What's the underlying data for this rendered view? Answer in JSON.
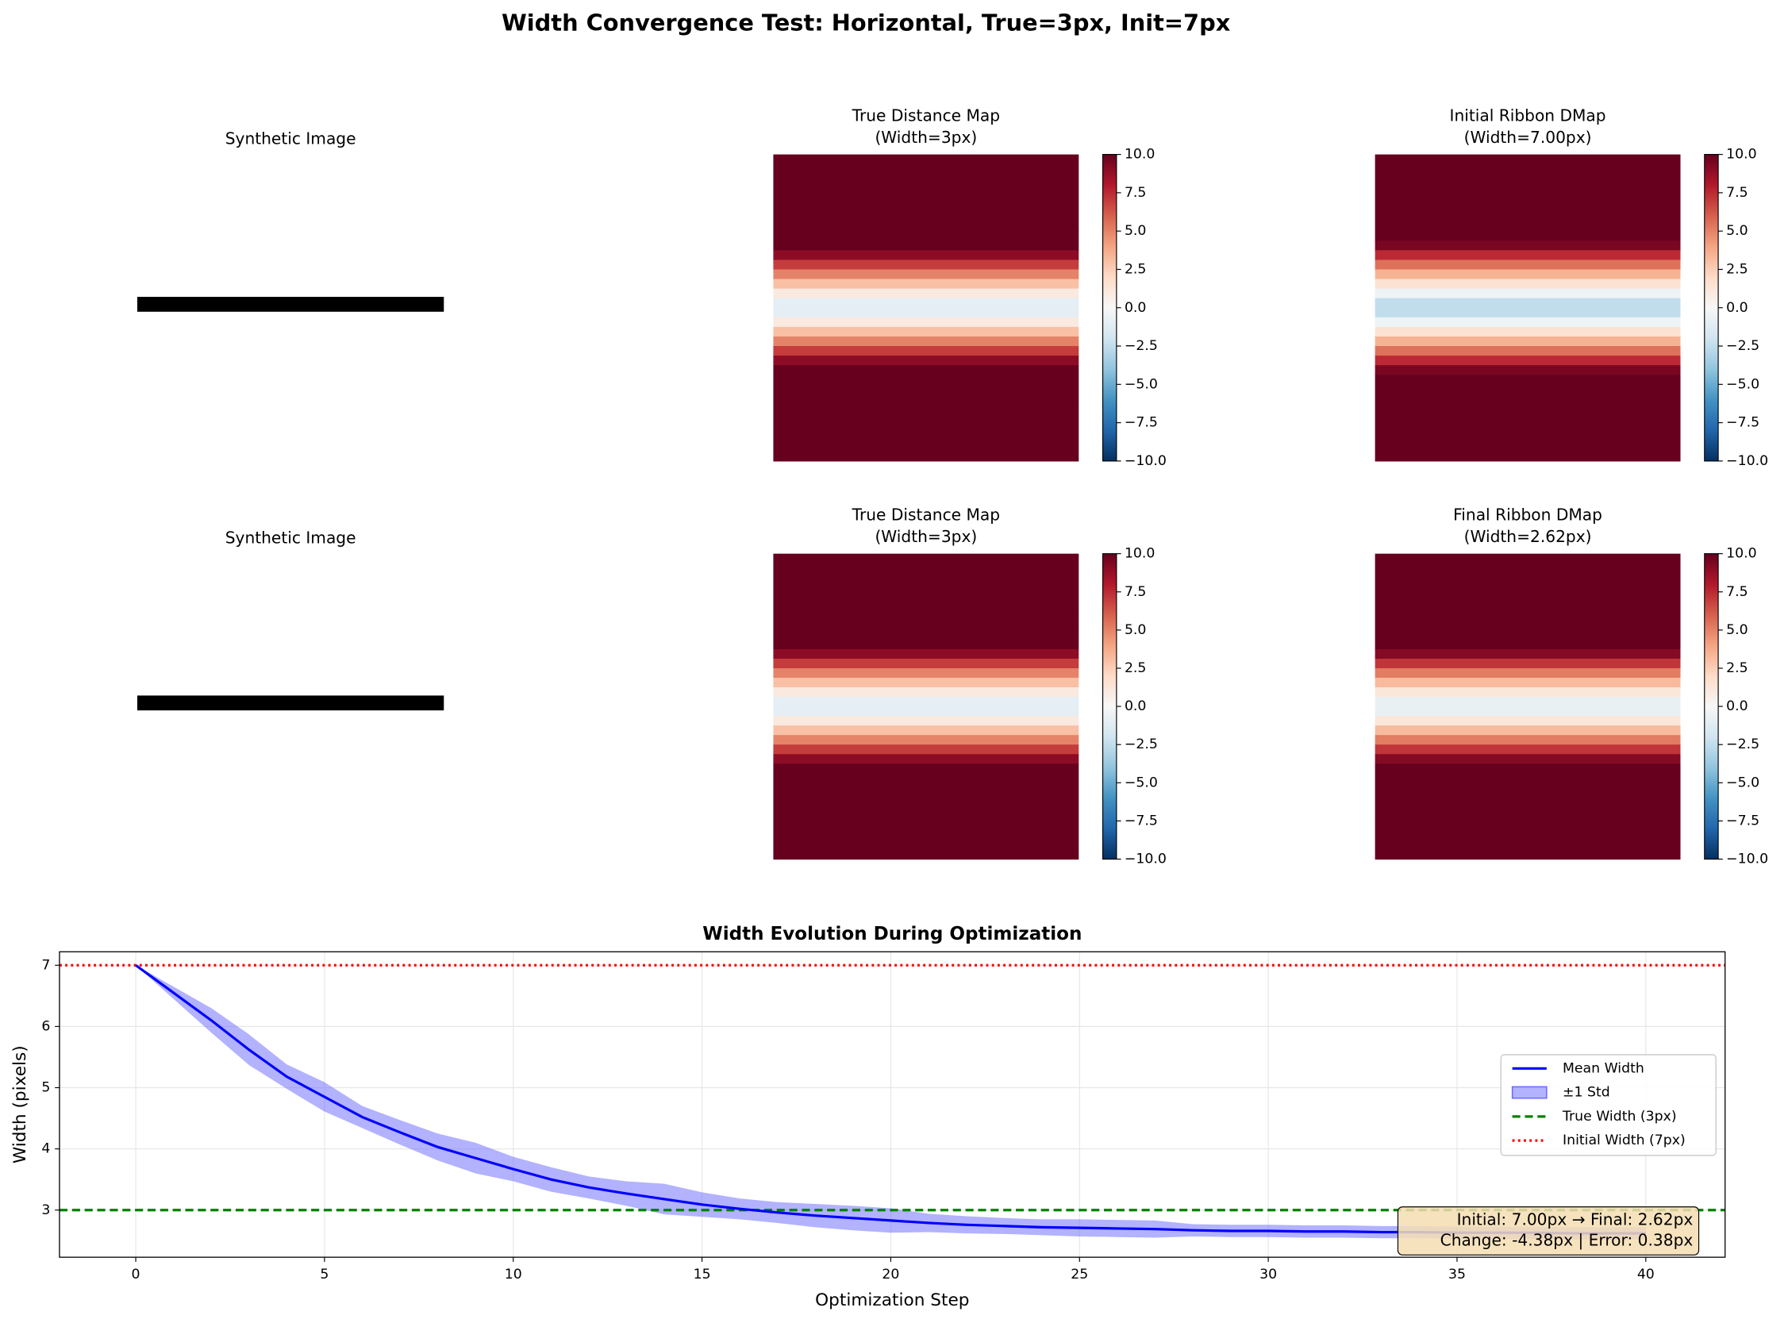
{
  "title": "Width Convergence Test: Horizontal, True=3px, Init=7px",
  "chart_data": [
    {
      "type": "image",
      "title": "Synthetic Image"
    },
    {
      "type": "heatmap",
      "title": "True Distance Map",
      "subtitle": "(Width=3px)",
      "colormap": "RdBu_r",
      "clim": [
        -10,
        10
      ],
      "values": [
        10,
        10,
        10,
        10,
        10,
        10,
        10,
        10,
        10,
        10,
        9,
        7,
        5,
        3,
        1,
        -1,
        -1,
        1,
        3,
        5,
        7,
        9,
        10,
        10,
        10,
        10,
        10,
        10,
        10,
        10,
        10,
        10
      ],
      "cticks": [
        {
          "value": 10,
          "label": "10.0"
        },
        {
          "value": 7.5,
          "label": "7.5"
        },
        {
          "value": 5,
          "label": "5.0"
        },
        {
          "value": 2.5,
          "label": "2.5"
        },
        {
          "value": 0,
          "label": "0.0"
        },
        {
          "value": -2.5,
          "label": "−2.5"
        },
        {
          "value": -5,
          "label": "−5.0"
        },
        {
          "value": -7.5,
          "label": "−7.5"
        },
        {
          "value": -10,
          "label": "−10.0"
        }
      ]
    },
    {
      "type": "heatmap",
      "title": "Initial Ribbon DMap",
      "subtitle": "(Width=7.00px)",
      "colormap": "RdBu_r",
      "clim": [
        -10,
        10
      ],
      "values": [
        10,
        10,
        10,
        10,
        10,
        10,
        10,
        10,
        10,
        9.5,
        7.5,
        5.5,
        3.5,
        1.5,
        -0.5,
        -2.5,
        -2.5,
        -0.5,
        1.5,
        3.5,
        5.5,
        7.5,
        9.5,
        10,
        10,
        10,
        10,
        10,
        10,
        10,
        10,
        10
      ],
      "cticks": [
        {
          "value": 10,
          "label": "10.0"
        },
        {
          "value": 7.5,
          "label": "7.5"
        },
        {
          "value": 5,
          "label": "5.0"
        },
        {
          "value": 2.5,
          "label": "2.5"
        },
        {
          "value": 0,
          "label": "0.0"
        },
        {
          "value": -2.5,
          "label": "−2.5"
        },
        {
          "value": -5,
          "label": "−5.0"
        },
        {
          "value": -7.5,
          "label": "−7.5"
        },
        {
          "value": -10,
          "label": "−10.0"
        }
      ]
    },
    {
      "type": "image",
      "title": "Synthetic Image"
    },
    {
      "type": "heatmap",
      "title": "True Distance Map",
      "subtitle": "(Width=3px)",
      "colormap": "RdBu_r",
      "clim": [
        -10,
        10
      ],
      "values": [
        10,
        10,
        10,
        10,
        10,
        10,
        10,
        10,
        10,
        10,
        9,
        7,
        5,
        3,
        1,
        -1,
        -1,
        1,
        3,
        5,
        7,
        9,
        10,
        10,
        10,
        10,
        10,
        10,
        10,
        10,
        10,
        10
      ],
      "cticks": [
        {
          "value": 10,
          "label": "10.0"
        },
        {
          "value": 7.5,
          "label": "7.5"
        },
        {
          "value": 5,
          "label": "5.0"
        },
        {
          "value": 2.5,
          "label": "2.5"
        },
        {
          "value": 0,
          "label": "0.0"
        },
        {
          "value": -2.5,
          "label": "−2.5"
        },
        {
          "value": -5,
          "label": "−5.0"
        },
        {
          "value": -7.5,
          "label": "−7.5"
        },
        {
          "value": -10,
          "label": "−10.0"
        }
      ]
    },
    {
      "type": "heatmap",
      "title": "Final Ribbon DMap",
      "subtitle": "(Width=2.62px)",
      "colormap": "RdBu_r",
      "clim": [
        -10,
        10
      ],
      "values": [
        10,
        10,
        10,
        10,
        10,
        10,
        10,
        10,
        10,
        10,
        9.2,
        7.2,
        5.2,
        3.2,
        1.2,
        -0.8,
        -0.8,
        1.2,
        3.2,
        5.2,
        7.2,
        9.2,
        10,
        10,
        10,
        10,
        10,
        10,
        10,
        10,
        10,
        10
      ],
      "cticks": [
        {
          "value": 10,
          "label": "10.0"
        },
        {
          "value": 7.5,
          "label": "7.5"
        },
        {
          "value": 5,
          "label": "5.0"
        },
        {
          "value": 2.5,
          "label": "2.5"
        },
        {
          "value": 0,
          "label": "0.0"
        },
        {
          "value": -2.5,
          "label": "−2.5"
        },
        {
          "value": -5,
          "label": "−5.0"
        },
        {
          "value": -7.5,
          "label": "−7.5"
        },
        {
          "value": -10,
          "label": "−10.0"
        }
      ]
    },
    {
      "type": "line",
      "title": "Width Evolution During Optimization",
      "x_label": "Optimization Step",
      "y_label": "Width (pixels)",
      "x": [
        0,
        1,
        2,
        3,
        4,
        5,
        6,
        7,
        8,
        9,
        10,
        11,
        12,
        13,
        14,
        15,
        16,
        17,
        18,
        19,
        20,
        21,
        22,
        23,
        24,
        25,
        26,
        27,
        28,
        29,
        30,
        31,
        32,
        33,
        34,
        35,
        36,
        37,
        38,
        39,
        40
      ],
      "series": [
        {
          "name": "Mean Width",
          "color": "#0000ff",
          "values": [
            7,
            6.55,
            6.1,
            5.62,
            5.18,
            4.85,
            4.52,
            4.27,
            4.03,
            3.85,
            3.67,
            3.5,
            3.37,
            3.27,
            3.18,
            3.09,
            3.02,
            2.96,
            2.91,
            2.87,
            2.83,
            2.79,
            2.76,
            2.74,
            2.72,
            2.71,
            2.7,
            2.69,
            2.67,
            2.66,
            2.66,
            2.65,
            2.65,
            2.64,
            2.64,
            2.63,
            2.63,
            2.63,
            2.62,
            2.62,
            2.62
          ]
        },
        {
          "name": "±1 Std",
          "color": "#6666ff",
          "values": [
            0,
            0.1,
            0.2,
            0.25,
            0.2,
            0.24,
            0.18,
            0.2,
            0.22,
            0.25,
            0.2,
            0.2,
            0.18,
            0.2,
            0.25,
            0.2,
            0.17,
            0.17,
            0.19,
            0.2,
            0.2,
            0.15,
            0.14,
            0.13,
            0.13,
            0.14,
            0.14,
            0.14,
            0.1,
            0.1,
            0.1,
            0.1,
            0.1,
            0.1,
            0.1,
            0.1,
            0.1,
            0.1,
            0.1,
            0.1,
            0.1
          ]
        }
      ],
      "hlines": [
        {
          "name": "True Width (3px)",
          "value": 3,
          "color": "#008000",
          "style": "dashed"
        },
        {
          "name": "Initial Width (7px)",
          "value": 7,
          "color": "#ff0000",
          "style": "dotted"
        }
      ],
      "xlim": [
        -2.02,
        42.1
      ],
      "ylim": [
        2.23,
        7.22
      ],
      "xticks": [
        0,
        5,
        10,
        15,
        20,
        25,
        30,
        35,
        40
      ],
      "yticks": [
        3,
        4,
        5,
        6,
        7
      ],
      "grid": true,
      "legend": "right",
      "annotations": [
        "Initial: 7.00px → Final: 2.62px",
        "Change: -4.38px | Error: 0.38px"
      ]
    }
  ]
}
